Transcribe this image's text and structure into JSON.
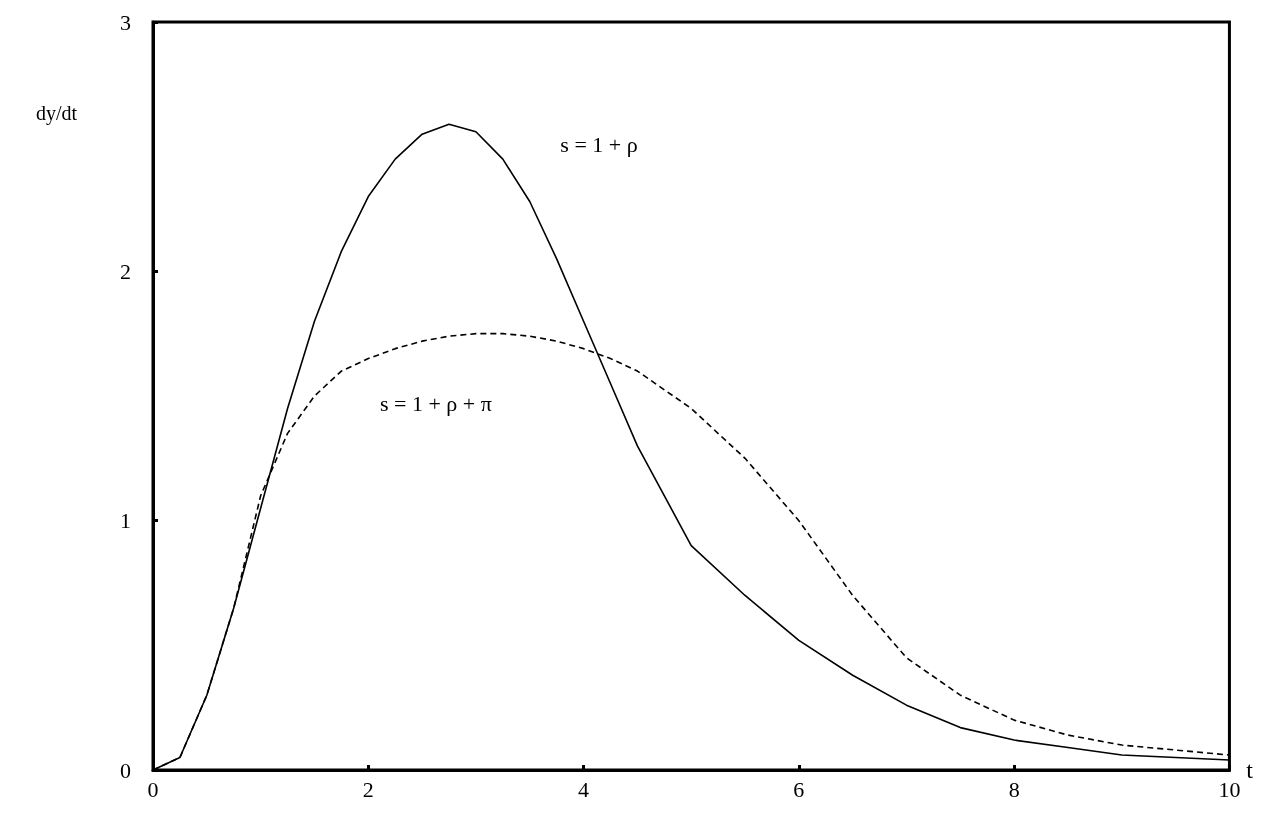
{
  "chart_data": {
    "type": "line",
    "xlabel": "t",
    "ylabel": "dy/dt",
    "x": [
      0,
      0.25,
      0.5,
      0.75,
      1,
      1.25,
      1.5,
      1.75,
      2,
      2.25,
      2.5,
      2.75,
      3,
      3.25,
      3.5,
      3.75,
      4,
      4.25,
      4.5,
      5,
      5.5,
      6,
      6.5,
      7,
      7.5,
      8,
      8.5,
      9,
      9.5,
      10
    ],
    "series": [
      {
        "name": "s = 1 + ρ",
        "color": "#000000",
        "line_style": "solid",
        "values": [
          0,
          0.05,
          0.3,
          0.65,
          1.05,
          1.45,
          1.8,
          2.08,
          2.3,
          2.45,
          2.55,
          2.59,
          2.56,
          2.45,
          2.28,
          2.05,
          1.8,
          1.55,
          1.3,
          0.9,
          0.7,
          0.52,
          0.38,
          0.26,
          0.17,
          0.12,
          0.09,
          0.06,
          0.05,
          0.04
        ]
      },
      {
        "name": "s = 1 + ρ + π",
        "color": "#000000",
        "line_style": "dashed",
        "values": [
          0,
          0.05,
          0.3,
          0.65,
          1.1,
          1.35,
          1.5,
          1.6,
          1.65,
          1.69,
          1.72,
          1.74,
          1.75,
          1.75,
          1.74,
          1.72,
          1.69,
          1.65,
          1.6,
          1.45,
          1.25,
          1.0,
          0.7,
          0.45,
          0.3,
          0.2,
          0.14,
          0.1,
          0.08,
          0.06
        ]
      }
    ],
    "xlim": [
      0,
      10
    ],
    "xticks": [
      0,
      2,
      4,
      6,
      8,
      10
    ],
    "ylim": [
      0,
      3
    ],
    "yticks": [
      0,
      1,
      2,
      3
    ],
    "marker": "none",
    "grid": false,
    "legend": false
  }
}
